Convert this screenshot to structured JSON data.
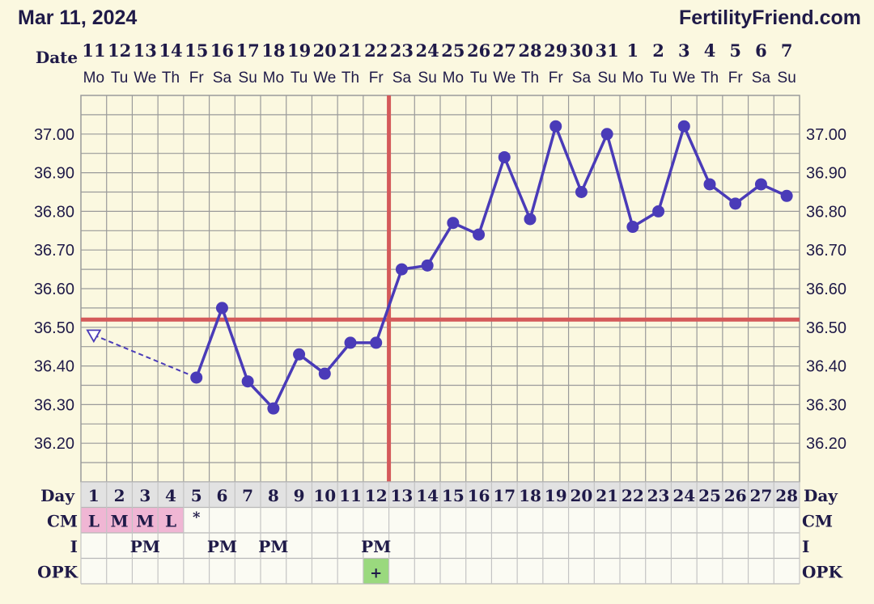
{
  "header": {
    "date": "Mar 11, 2024",
    "brand": "FertilityFriend.com"
  },
  "colors": {
    "background": "#fbf8e0",
    "grid": "#9a9a9a",
    "line": "#4a3bb8",
    "coverline": "#d45a5a",
    "text": "#1f1a48",
    "cm_highlight": "#f0b6d4",
    "opk_positive": "#9ad97e",
    "row_band": "#e2e2e2"
  },
  "chart_data": {
    "type": "line",
    "title": "",
    "ylim": [
      36.1,
      37.1
    ],
    "y_ticks": [
      "37.00",
      "36.90",
      "36.80",
      "36.70",
      "36.60",
      "36.50",
      "36.40",
      "36.30",
      "36.20"
    ],
    "date_label": "Date",
    "dates": [
      "11",
      "12",
      "13",
      "14",
      "15",
      "16",
      "17",
      "18",
      "19",
      "20",
      "21",
      "22",
      "23",
      "24",
      "25",
      "26",
      "27",
      "28",
      "29",
      "30",
      "31",
      "1",
      "2",
      "3",
      "4",
      "5",
      "6",
      "7"
    ],
    "weekdays": [
      "Mo",
      "Tu",
      "We",
      "Th",
      "Fr",
      "Sa",
      "Su",
      "Mo",
      "Tu",
      "We",
      "Th",
      "Fr",
      "Sa",
      "Su",
      "Mo",
      "Tu",
      "We",
      "Th",
      "Fr",
      "Sa",
      "Su",
      "Mo",
      "Tu",
      "We",
      "Th",
      "Fr",
      "Sa",
      "Su"
    ],
    "cycle_day_label": "Day",
    "cycle_days": [
      "1",
      "2",
      "3",
      "4",
      "5",
      "6",
      "7",
      "8",
      "9",
      "10",
      "11",
      "12",
      "13",
      "14",
      "15",
      "16",
      "17",
      "18",
      "19",
      "20",
      "21",
      "22",
      "23",
      "24",
      "25",
      "26",
      "27",
      "28"
    ],
    "series": [
      {
        "values": [
          36.48,
          null,
          null,
          null,
          36.37,
          36.55,
          36.36,
          36.29,
          36.43,
          36.38,
          36.46,
          36.46,
          36.65,
          36.66,
          36.77,
          36.74,
          36.94,
          36.78,
          37.02,
          36.85,
          37.0,
          36.76,
          36.8,
          37.02,
          36.87,
          36.82,
          36.87,
          36.84
        ],
        "discarded_days": [
          1
        ],
        "dashed_between": [
          1,
          5
        ]
      }
    ],
    "coverline": 36.52,
    "ovulation_day": 12,
    "rows": [
      {
        "label": "CM",
        "values": [
          "L",
          "M",
          "M",
          "L",
          "*",
          "",
          "",
          "",
          "",
          "",
          "",
          "",
          "",
          "",
          "",
          "",
          "",
          "",
          "",
          "",
          "",
          "",
          "",
          "",
          "",
          "",
          "",
          ""
        ],
        "highlight_days": [
          1,
          2,
          3,
          4
        ]
      },
      {
        "label": "I",
        "values": [
          "",
          "",
          "PM",
          "",
          "",
          "PM",
          "",
          "PM",
          "",
          "",
          "",
          "PM",
          "",
          "",
          "",
          "",
          "",
          "",
          "",
          "",
          "",
          "",
          "",
          "",
          "",
          "",
          "",
          ""
        ]
      },
      {
        "label": "OPK",
        "values": [
          "",
          "",
          "",
          "",
          "",
          "",
          "",
          "",
          "",
          "",
          "",
          "+",
          "",
          "",
          "",
          "",
          "",
          "",
          "",
          "",
          "",
          "",
          "",
          "",
          "",
          "",
          "",
          ""
        ],
        "positive_days": [
          12
        ]
      }
    ],
    "grid": true
  }
}
